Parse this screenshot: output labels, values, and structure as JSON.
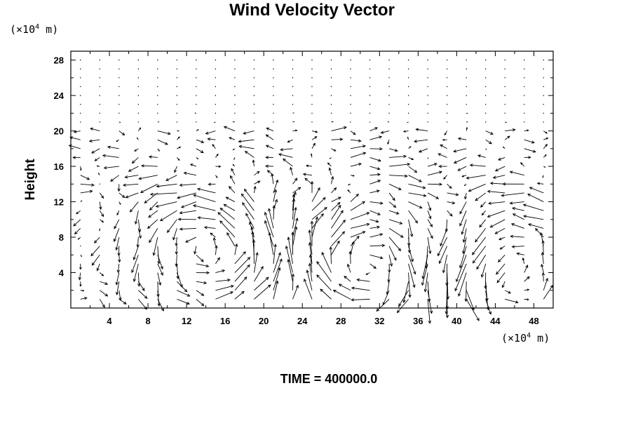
{
  "chart_data": {
    "type": "vector-field",
    "title": "Wind Velocity Vector",
    "ylabel": "Height",
    "y_unit_prefix": "(×10",
    "y_unit_exp": "4",
    "y_unit_suffix": " m)",
    "x_unit_prefix": "(×10",
    "x_unit_exp": "4",
    "x_unit_suffix": " m)",
    "xlim": [
      0,
      50
    ],
    "ylim": [
      0,
      29
    ],
    "x_ticks": [
      4,
      8,
      12,
      16,
      20,
      24,
      28,
      32,
      36,
      40,
      44,
      48
    ],
    "y_ticks": [
      4,
      8,
      12,
      16,
      20,
      24,
      28
    ],
    "grid_spacing": 2,
    "inversion_height": 20,
    "circulation_centers": [
      [
        14,
        6
      ],
      [
        31,
        5
      ],
      [
        46,
        4
      ]
    ],
    "updraft_x": 38
  },
  "footer": {
    "label": "TIME = 400000.0"
  }
}
